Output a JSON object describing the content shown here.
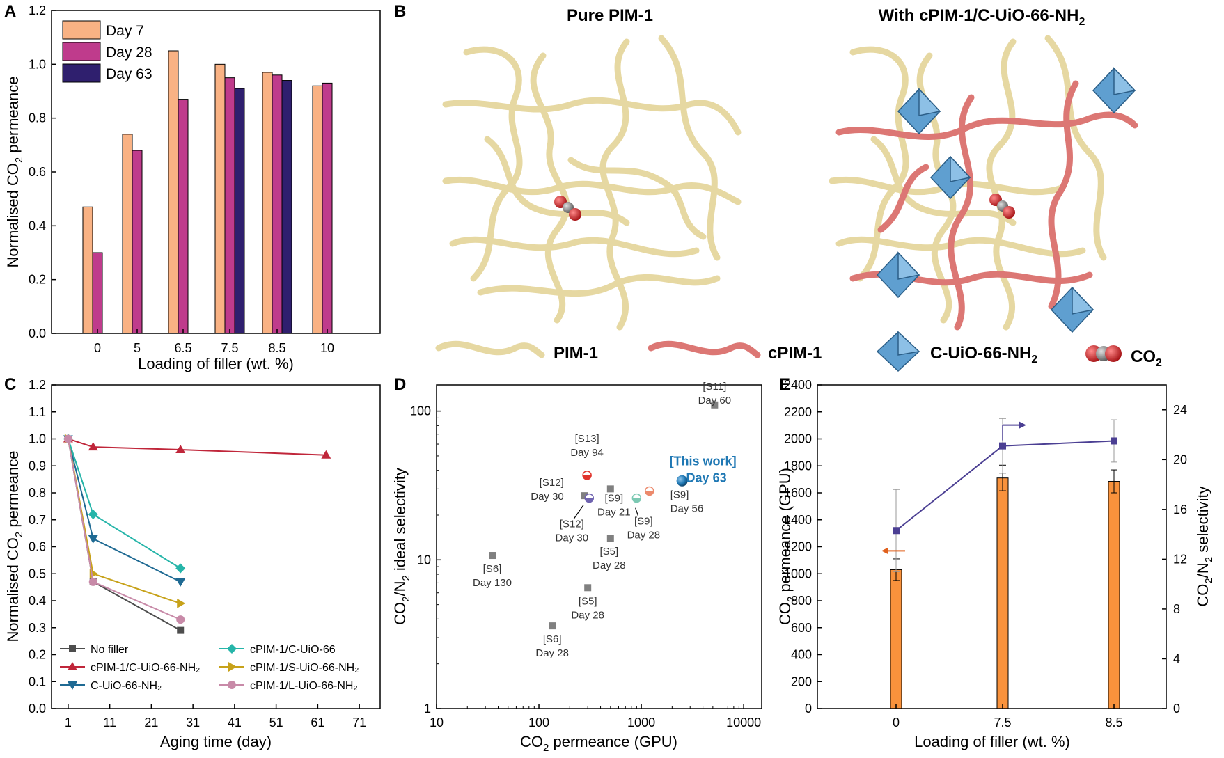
{
  "panels": {
    "A": "A",
    "B": "B",
    "C": "C",
    "D": "D",
    "E": "E"
  },
  "chart_data": [
    {
      "panel": "A",
      "type": "bar",
      "xlabel": "Loading of filler (wt. %)",
      "ylabel_main": "Normalised CO",
      "ylabel_sub": "2",
      "ylabel_tail": " permeance",
      "ylim": [
        0,
        1.2
      ],
      "yticks": [
        "0.0",
        "0.2",
        "0.4",
        "0.6",
        "0.8",
        "1.0",
        "1.2"
      ],
      "categories": [
        "0",
        "5",
        "6.5",
        "7.5",
        "8.5",
        "10"
      ],
      "legend_position": "top-left",
      "series": [
        {
          "name": "Day 7",
          "color": "#f9b284",
          "values": [
            0.47,
            0.74,
            1.05,
            1.0,
            0.97,
            0.92
          ]
        },
        {
          "name": "Day 28",
          "color": "#bf3b8c",
          "values": [
            0.3,
            0.68,
            0.87,
            0.95,
            0.96,
            0.93
          ]
        },
        {
          "name": "Day 63",
          "color": "#2f1f6e",
          "values": [
            null,
            null,
            null,
            0.91,
            0.94,
            null
          ]
        }
      ]
    },
    {
      "panel": "C",
      "type": "line",
      "xlabel": "Aging time (day)",
      "ylabel_main": "Normalised CO",
      "ylabel_sub": "2",
      "ylabel_tail": " permeance",
      "xlim": [
        -3,
        76
      ],
      "ylim": [
        0,
        1.2
      ],
      "xticks": [
        "1",
        "11",
        "21",
        "31",
        "41",
        "51",
        "61",
        "71"
      ],
      "yticks": [
        "0.0",
        "0.1",
        "0.2",
        "0.3",
        "0.4",
        "0.5",
        "0.6",
        "0.7",
        "0.8",
        "0.9",
        "1.0",
        "1.1",
        "1.2"
      ],
      "legend_position": "bottom",
      "series": [
        {
          "name": "No filler",
          "color": "#4d4d4d",
          "marker": "square",
          "x": [
            1,
            7,
            28
          ],
          "y": [
            1.0,
            0.47,
            0.29
          ]
        },
        {
          "name": "cPIM-1/C-UiO-66-NH₂",
          "color": "#c0263a",
          "marker": "triangle-up",
          "x": [
            1,
            7,
            28,
            63
          ],
          "y": [
            1.0,
            0.97,
            0.96,
            0.94
          ]
        },
        {
          "name": "C-UiO-66-NH₂",
          "color": "#1f6a93",
          "marker": "triangle-down",
          "x": [
            1,
            7,
            28
          ],
          "y": [
            1.0,
            0.63,
            0.47
          ]
        },
        {
          "name": "cPIM-1/C-UiO-66",
          "color": "#26b5a9",
          "marker": "diamond",
          "x": [
            1,
            7,
            28
          ],
          "y": [
            1.0,
            0.72,
            0.52
          ]
        },
        {
          "name": "cPIM-1/S-UiO-66-NH₂",
          "color": "#c7a21a",
          "marker": "triangle-right",
          "x": [
            1,
            7,
            28
          ],
          "y": [
            1.0,
            0.5,
            0.39
          ]
        },
        {
          "name": "cPIM-1/L-UiO-66-NH₂",
          "color": "#c88aa8",
          "marker": "circle",
          "x": [
            1,
            7,
            28
          ],
          "y": [
            1.0,
            0.47,
            0.33
          ]
        }
      ]
    },
    {
      "panel": "D",
      "type": "scatter",
      "xscale": "log",
      "yscale": "log",
      "xlim": [
        10,
        15000
      ],
      "ylim": [
        1,
        150
      ],
      "xticks": [
        "10",
        "100",
        "1000",
        "10000"
      ],
      "yticks": [
        "1",
        "10",
        "100"
      ],
      "xlabel_main": "CO",
      "xlabel_sub": "2",
      "xlabel_tail": " permeance (GPU)",
      "ylabel_a": "CO",
      "ylabel_sub1": "2",
      "ylabel_b": "/N",
      "ylabel_sub2": "2",
      "ylabel_c": " ideal selectivity",
      "points": [
        {
          "ref": "[S11]",
          "day": "Day 60",
          "x": 5200,
          "y": 110,
          "color": "#808080",
          "shape": "square"
        },
        {
          "ref": "[S13]",
          "day": "Day 94",
          "x": 295,
          "y": 37,
          "color": "#e0342c",
          "shape": "half-circle"
        },
        {
          "ref": "[S12]",
          "day": "Day 30",
          "x": 280,
          "y": 27,
          "color": "#808080",
          "shape": "square"
        },
        {
          "ref": "[S12]",
          "day": "Day 30",
          "x": 310,
          "y": 26,
          "color": "#6f63b0",
          "shape": "half-circle"
        },
        {
          "ref": "[S9]",
          "day": "Day 21",
          "x": 500,
          "y": 30,
          "color": "#808080",
          "shape": "square"
        },
        {
          "ref": "[S9]",
          "day": "Day 56",
          "x": 1200,
          "y": 29,
          "color": "#ec8a6c",
          "shape": "half-circle"
        },
        {
          "ref": "[S9]",
          "day": "Day 28",
          "x": 900,
          "y": 26,
          "color": "#7cc9b3",
          "shape": "half-circle"
        },
        {
          "ref": "[S5]",
          "day": "Day 28",
          "x": 500,
          "y": 14,
          "color": "#808080",
          "shape": "square"
        },
        {
          "ref": "[S6]",
          "day": "Day 130",
          "x": 35,
          "y": 10.7,
          "color": "#808080",
          "shape": "square"
        },
        {
          "ref": "[S5]",
          "day": "Day 28",
          "x": 300,
          "y": 6.5,
          "color": "#808080",
          "shape": "square"
        },
        {
          "ref": "[S6]",
          "day": "Day 28",
          "x": 135,
          "y": 3.6,
          "color": "#808080",
          "shape": "square"
        },
        {
          "ref": "[This work]",
          "day": "Day 63",
          "x": 2500,
          "y": 34,
          "color": "#1f78b4",
          "shape": "sphere"
        }
      ]
    },
    {
      "panel": "E",
      "type": "bar",
      "xlabel": "Loading of filler (wt. %)",
      "categories": [
        "0",
        "7.5",
        "8.5"
      ],
      "ylabel_left_main": "CO",
      "ylabel_left_sub": "2",
      "ylabel_left_tail": " permeance (GPU)",
      "ylim_left": [
        0,
        2400
      ],
      "yticks_left": [
        "0",
        "200",
        "400",
        "600",
        "800",
        "1000",
        "1200",
        "1400",
        "1600",
        "1800",
        "2000",
        "2200",
        "2400"
      ],
      "ylabel_right_a": "CO",
      "ylabel_right_sub1": "2",
      "ylabel_right_b": "/N",
      "ylabel_right_sub2": "2",
      "ylabel_right_c": " selectivity",
      "ylim_right": [
        0,
        26
      ],
      "yticks_right": [
        "0",
        "4",
        "8",
        "12",
        "16",
        "20",
        "24"
      ],
      "bar_color": "#f9923c",
      "line_color": "#4b3f93",
      "permeance": [
        1030,
        1710,
        1685
      ],
      "permeance_err": [
        80,
        95,
        85
      ],
      "selectivity": [
        14.3,
        21.1,
        21.5
      ],
      "selectivity_err": [
        3.3,
        2.2,
        1.7
      ]
    }
  ],
  "schematic": {
    "title_left": "Pure PIM-1",
    "title_right_main": "With cPIM-1/C-UiO-66-NH",
    "title_right_sub": "2",
    "legend_pim1": "PIM-1",
    "legend_cpim1": "cPIM-1",
    "legend_mof_main": "C-UiO-66-NH",
    "legend_mof_sub": "2",
    "legend_co2_main": "CO",
    "legend_co2_sub": "2",
    "pim_color": "#e6d8a2",
    "cpim_color": "#dc7774",
    "mof_color": "#5f9fd0"
  }
}
